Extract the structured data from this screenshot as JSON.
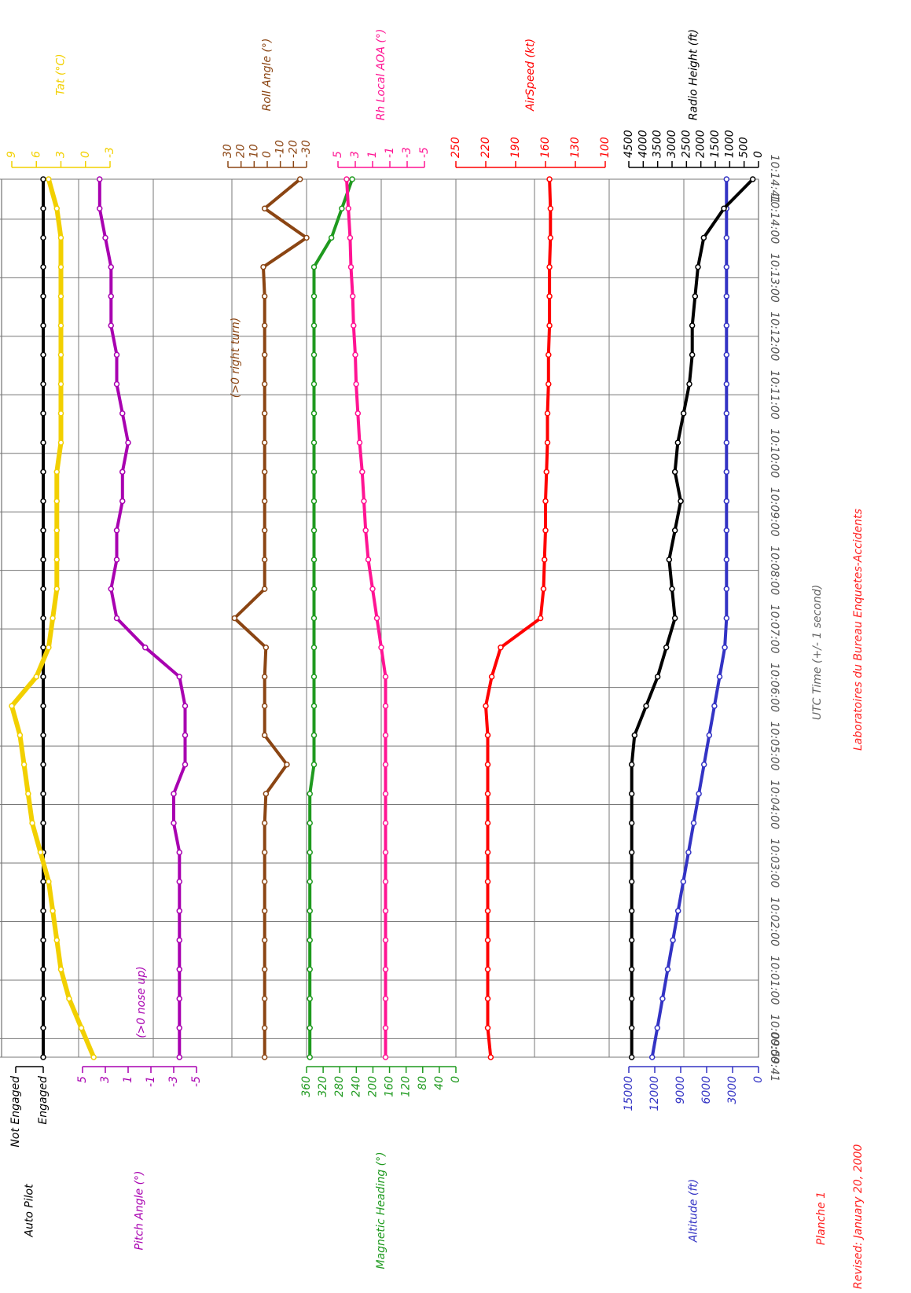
{
  "time": {
    "label": "UTC Time (+/- 1 second)",
    "x": [
      "09:59:41",
      "10:00:11",
      "10:00:41",
      "10:01:11",
      "10:01:41",
      "10:02:11",
      "10:02:41",
      "10:03:11",
      "10:03:41",
      "10:04:11",
      "10:04:41",
      "10:05:11",
      "10:05:41",
      "10:06:11",
      "10:06:41",
      "10:07:11",
      "10:07:41",
      "10:08:11",
      "10:08:41",
      "10:09:11",
      "10:09:41",
      "10:10:11",
      "10:10:41",
      "10:11:11",
      "10:11:41",
      "10:12:11",
      "10:12:41",
      "10:13:11",
      "10:13:41",
      "10:14:11",
      "10:14:41"
    ],
    "xlim": [
      "09:59:41",
      "10:14:41"
    ],
    "xticks": [
      "09:59:41",
      "10:00:00",
      "10:01:00",
      "10:02:00",
      "10:03:00",
      "10:04:00",
      "10:05:00",
      "10:06:00",
      "10:07:00",
      "10:08:00",
      "10:09:00",
      "10:10:00",
      "10:11:00",
      "10:12:00",
      "10:13:00",
      "10:14:00",
      "10:14:41"
    ],
    "grid": true
  },
  "chart_data": [
    {
      "type": "line",
      "title": "Auto Pilot",
      "axis_side": "left",
      "color": "#000000",
      "ylim": [
        0,
        1
      ],
      "yticks": [
        {
          "value": 1,
          "label": "Not Engaged"
        },
        {
          "value": 0,
          "label": "Engaged"
        }
      ],
      "values": [
        0,
        0,
        0,
        0,
        0,
        0,
        0,
        0,
        0,
        0,
        0,
        0,
        0,
        0,
        0,
        0,
        0,
        0,
        0,
        0,
        0,
        0,
        0,
        0,
        0,
        0,
        0,
        0,
        0,
        0,
        0
      ]
    },
    {
      "type": "line",
      "title": "Tat (°C)",
      "axis_side": "right",
      "color": "#f2d000",
      "ylim": [
        -3,
        9
      ],
      "yticks": [
        9,
        6,
        3,
        0,
        -3
      ],
      "values": [
        -1,
        0.5,
        2,
        3,
        3.5,
        4,
        4.5,
        5.5,
        6.5,
        7,
        7.5,
        8,
        9,
        6,
        4.5,
        4,
        3.5,
        3.5,
        3.5,
        3.5,
        3.5,
        3,
        3,
        3,
        3,
        3,
        3,
        3,
        3,
        3.5,
        4.5
      ]
    },
    {
      "type": "line",
      "title": "Pitch Angle (°)",
      "axis_side": "left",
      "color": "#a800b0",
      "ylim": [
        -5,
        5
      ],
      "yticks": [
        5,
        3,
        1,
        -1,
        -3,
        -5
      ],
      "annotation": "(>0 nose up)",
      "values": [
        -3.5,
        -3.5,
        -3.5,
        -3.5,
        -3.5,
        -3.5,
        -3.5,
        -3.5,
        -3,
        -3,
        -4,
        -4,
        -4,
        -3.5,
        -0.5,
        2,
        2.5,
        2,
        2,
        1.5,
        1.5,
        1,
        1.5,
        2,
        2,
        2.5,
        2.5,
        2.5,
        3,
        3.5,
        3.5
      ]
    },
    {
      "type": "line",
      "title": "Roll Angle (°)",
      "axis_side": "right",
      "color": "#8b4513",
      "ylim": [
        -30,
        30
      ],
      "yticks": [
        30,
        20,
        10,
        0,
        -10,
        -20,
        -30
      ],
      "annotation": "(>0 right turn)",
      "values": [
        2,
        2,
        2,
        2,
        2,
        2,
        2,
        2,
        2,
        1,
        -15,
        2,
        2,
        2,
        1,
        25,
        2,
        2,
        2,
        2,
        2,
        2,
        2,
        2,
        2,
        2,
        2,
        3,
        -30,
        2,
        -25
      ]
    },
    {
      "type": "line",
      "title": "Magnetic Heading (°)",
      "axis_side": "left",
      "color": "#1f9a1f",
      "ylim": [
        0,
        360
      ],
      "yticks": [
        360,
        320,
        280,
        240,
        200,
        160,
        120,
        80,
        40,
        0
      ],
      "values": [
        352,
        352,
        352,
        352,
        352,
        352,
        352,
        352,
        352,
        352,
        342,
        342,
        342,
        342,
        342,
        342,
        342,
        342,
        342,
        342,
        342,
        342,
        342,
        342,
        342,
        342,
        342,
        342,
        300,
        275,
        250
      ]
    },
    {
      "type": "line",
      "title": "Rh Local AOA (°)",
      "axis_side": "right",
      "color": "#ff1493",
      "ylim": [
        -5,
        5
      ],
      "yticks": [
        5,
        3,
        1,
        -1,
        -3,
        -5
      ],
      "values": [
        -0.5,
        -0.5,
        -0.5,
        -0.5,
        -0.5,
        -0.5,
        -0.5,
        -0.5,
        -0.5,
        -0.5,
        -0.5,
        -0.5,
        -0.5,
        -0.5,
        0,
        0.5,
        1,
        1.5,
        1.8,
        2,
        2.2,
        2.5,
        2.7,
        2.9,
        3,
        3.2,
        3.3,
        3.5,
        3.6,
        3.8,
        4
      ]
    },
    {
      "type": "line",
      "title": "AirSpeed (kt)",
      "axis_side": "right",
      "color": "#ff0000",
      "ylim": [
        100,
        250
      ],
      "yticks": [
        250,
        220,
        190,
        160,
        130,
        100
      ],
      "values": [
        215,
        218,
        218,
        218,
        218,
        218,
        218,
        218,
        218,
        218,
        218,
        218,
        220,
        214,
        205,
        165,
        162,
        161,
        160,
        160,
        159,
        158,
        158,
        157,
        157,
        156,
        156,
        156,
        155,
        155,
        156
      ]
    },
    {
      "type": "line",
      "title": "Altitude (ft)",
      "axis_side": "left",
      "color": "#3333c4",
      "ylim": [
        0,
        15000
      ],
      "yticks": [
        15000,
        12000,
        9000,
        6000,
        3000,
        0
      ],
      "values": [
        12300,
        11700,
        11100,
        10500,
        9900,
        9300,
        8700,
        8100,
        7500,
        6900,
        6300,
        5700,
        5100,
        4500,
        3900,
        3700,
        3700,
        3700,
        3700,
        3700,
        3700,
        3700,
        3700,
        3700,
        3700,
        3700,
        3700,
        3700,
        3700,
        3700,
        3700
      ]
    },
    {
      "type": "line",
      "title": "Radio Height (ft)",
      "axis_side": "right",
      "color": "#000000",
      "ylim": [
        0,
        4500
      ],
      "yticks": [
        4500,
        4000,
        3500,
        3000,
        2500,
        2000,
        1500,
        1000,
        500,
        0
      ],
      "values": [
        4400,
        4400,
        4400,
        4400,
        4400,
        4400,
        4400,
        4400,
        4400,
        4400,
        4400,
        4300,
        3900,
        3500,
        3200,
        2900,
        3000,
        3100,
        2900,
        2700,
        2900,
        2800,
        2600,
        2400,
        2300,
        2300,
        2200,
        2100,
        1900,
        1200,
        200
      ]
    }
  ],
  "footer": {
    "plate": "Planche 1",
    "revised": "Revised: January 20, 2000",
    "lab": "Laboratoires du Bureau Enquetes-Accidents"
  }
}
